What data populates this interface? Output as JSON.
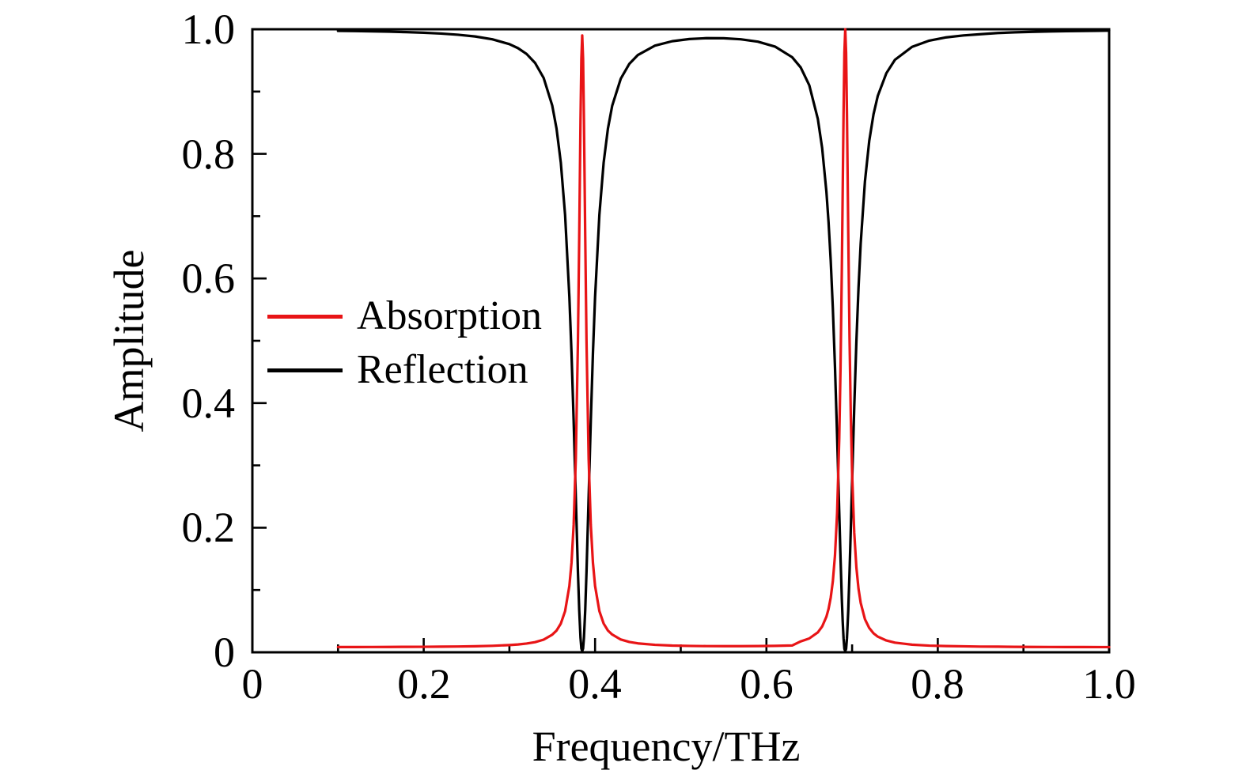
{
  "figure": {
    "background_color": "#ffffff",
    "axis_color": "#000000"
  },
  "chart_data": {
    "type": "line",
    "title": "",
    "xlabel": "Frequency/THz",
    "ylabel": "Amplitude",
    "xlim": [
      0,
      1.0
    ],
    "ylim": [
      0,
      1.0
    ],
    "grid": false,
    "frame": "full-box",
    "x_tick_labels": [
      "0",
      "0.2",
      "0.4",
      "0.6",
      "0.8",
      "1.0"
    ],
    "x_major_ticks": [
      0,
      0.2,
      0.4,
      0.6,
      0.8,
      1.0
    ],
    "x_minor_ticks": [
      0.1,
      0.3,
      0.5,
      0.7,
      0.9
    ],
    "y_tick_labels": [
      "0",
      "0.2",
      "0.4",
      "0.6",
      "0.8",
      "1.0"
    ],
    "y_major_ticks": [
      0,
      0.2,
      0.4,
      0.6,
      0.8,
      1.0
    ],
    "y_minor_ticks": [
      0.1,
      0.3,
      0.5,
      0.7,
      0.9
    ],
    "legend": {
      "position": "center-left",
      "entries": [
        {
          "label": "Absorption",
          "color": "#e81416"
        },
        {
          "label": "Reflection",
          "color": "#000000"
        }
      ]
    },
    "resonance_frequencies_THz": [
      0.385,
      0.692
    ],
    "absorption_peaks": [
      {
        "frequency_THz": 0.385,
        "amplitude": 0.99
      },
      {
        "frequency_THz": 0.692,
        "amplitude": 1.0
      }
    ],
    "reflection_dips": [
      {
        "frequency_THz": 0.385,
        "amplitude": 0.002
      },
      {
        "frequency_THz": 0.692,
        "amplitude": 0.002
      }
    ],
    "x": [
      0.1,
      0.12,
      0.14,
      0.16,
      0.18,
      0.2,
      0.22,
      0.24,
      0.26,
      0.28,
      0.3,
      0.31,
      0.32,
      0.33,
      0.34,
      0.35,
      0.355,
      0.36,
      0.365,
      0.37,
      0.3725,
      0.375,
      0.3775,
      0.38,
      0.3815,
      0.383,
      0.384,
      0.385,
      0.386,
      0.387,
      0.3885,
      0.39,
      0.3925,
      0.395,
      0.3975,
      0.4,
      0.405,
      0.41,
      0.415,
      0.42,
      0.43,
      0.44,
      0.45,
      0.47,
      0.49,
      0.51,
      0.53,
      0.55,
      0.57,
      0.59,
      0.61,
      0.63,
      0.64,
      0.65,
      0.66,
      0.665,
      0.67,
      0.6725,
      0.675,
      0.6775,
      0.68,
      0.6825,
      0.685,
      0.6865,
      0.688,
      0.689,
      0.69,
      0.691,
      0.692,
      0.693,
      0.694,
      0.6955,
      0.697,
      0.6985,
      0.7,
      0.7025,
      0.705,
      0.7075,
      0.71,
      0.715,
      0.72,
      0.725,
      0.73,
      0.74,
      0.75,
      0.77,
      0.79,
      0.81,
      0.83,
      0.85,
      0.87,
      0.89,
      0.91,
      0.93,
      0.95,
      0.97,
      0.99,
      1.0
    ],
    "series": [
      {
        "name": "Absorption",
        "color": "#e81416",
        "values": [
          0.0084,
          0.0084,
          0.0085,
          0.0086,
          0.0087,
          0.0088,
          0.009,
          0.0093,
          0.0097,
          0.0104,
          0.0116,
          0.0125,
          0.014,
          0.0163,
          0.0203,
          0.0283,
          0.0348,
          0.046,
          0.066,
          0.1064,
          0.1437,
          0.2047,
          0.3104,
          0.4993,
          0.6673,
          0.8548,
          0.9525,
          0.99,
          0.9525,
          0.8549,
          0.6674,
          0.4994,
          0.3105,
          0.2048,
          0.1438,
          0.1065,
          0.0661,
          0.0461,
          0.0349,
          0.0285,
          0.0205,
          0.0166,
          0.0143,
          0.012,
          0.0108,
          0.0102,
          0.0099,
          0.0098,
          0.0098,
          0.01,
          0.0103,
          0.0109,
          0.0175,
          0.0222,
          0.032,
          0.0413,
          0.0571,
          0.0696,
          0.0874,
          0.1138,
          0.1551,
          0.2236,
          0.3435,
          0.4572,
          0.6132,
          0.7377,
          0.8634,
          0.9621,
          1.0,
          0.9621,
          0.8634,
          0.6741,
          0.5043,
          0.3771,
          0.287,
          0.1917,
          0.1362,
          0.1018,
          0.0794,
          0.0531,
          0.039,
          0.0305,
          0.0251,
          0.0189,
          0.0155,
          0.0122,
          0.0107,
          0.01,
          0.0096,
          0.0091,
          0.009,
          0.0087,
          0.0086,
          0.0085,
          0.0084,
          0.0084,
          0.0083,
          0.0083
        ]
      },
      {
        "name": "Reflection",
        "color": "#000000",
        "values": [
          0.9974,
          0.9971,
          0.9966,
          0.9961,
          0.9954,
          0.9944,
          0.9931,
          0.9912,
          0.9884,
          0.9839,
          0.9761,
          0.9697,
          0.9604,
          0.9459,
          0.9218,
          0.8776,
          0.8407,
          0.7861,
          0.702,
          0.5703,
          0.4798,
          0.3713,
          0.2495,
          0.1289,
          0.0677,
          0.0233,
          0.0061,
          0.002,
          0.0061,
          0.0233,
          0.0677,
          0.1289,
          0.2496,
          0.3714,
          0.4799,
          0.57,
          0.7019,
          0.7859,
          0.8405,
          0.8773,
          0.9207,
          0.9445,
          0.9587,
          0.9738,
          0.9808,
          0.9843,
          0.9857,
          0.9856,
          0.9839,
          0.9801,
          0.9722,
          0.9552,
          0.9387,
          0.9102,
          0.8561,
          0.8097,
          0.7393,
          0.6905,
          0.6293,
          0.5528,
          0.4587,
          0.347,
          0.2239,
          0.1511,
          0.0859,
          0.0501,
          0.0227,
          0.0055,
          0.002,
          0.0055,
          0.0227,
          0.0671,
          0.1282,
          0.1992,
          0.2738,
          0.3937,
          0.4986,
          0.5855,
          0.6555,
          0.756,
          0.8207,
          0.8636,
          0.8932,
          0.9295,
          0.951,
          0.9718,
          0.9817,
          0.987,
          0.9901,
          0.9921,
          0.994,
          0.9951,
          0.9959,
          0.9965,
          0.9969,
          0.9973,
          0.9976,
          0.9978
        ]
      }
    ]
  }
}
